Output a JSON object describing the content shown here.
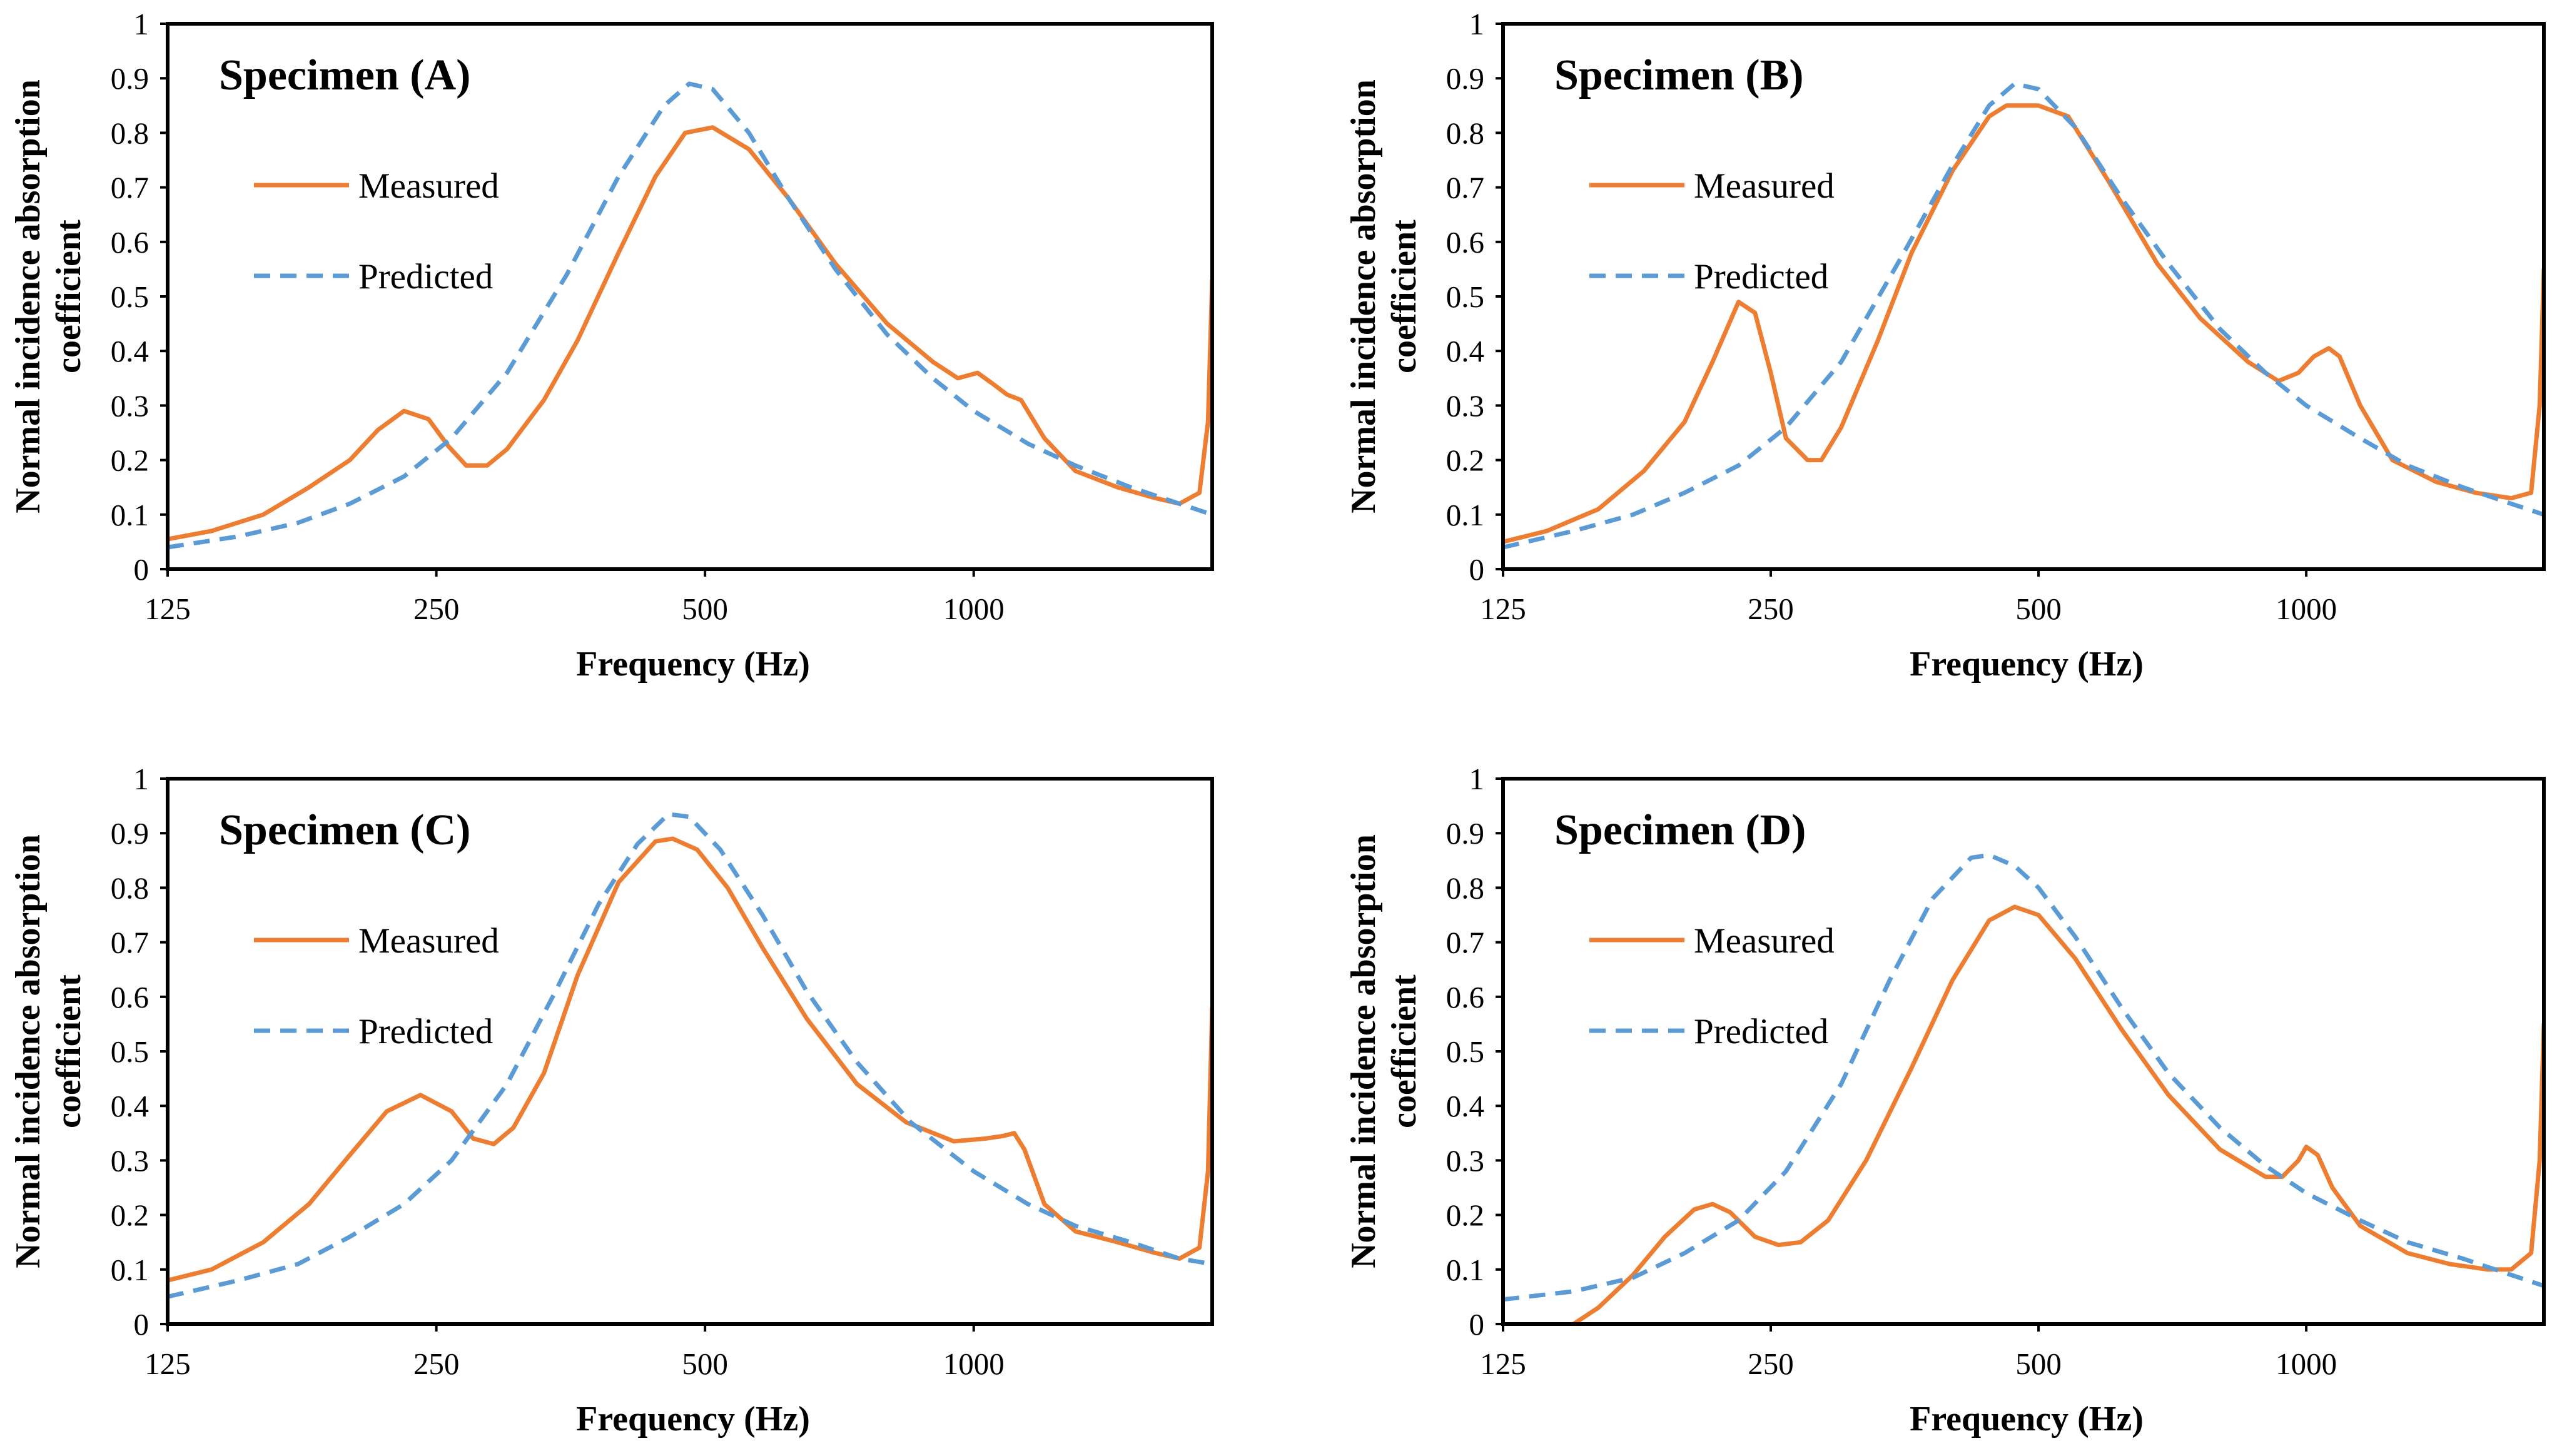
{
  "styles": {
    "measured_color": "#ED7D31",
    "predicted_color": "#5B9BD5"
  },
  "chart_data": [
    {
      "type": "line",
      "title": "Specimen (A)",
      "xlabel": "Frequency (Hz)",
      "ylabel": "Normal incidence absorption coefficient",
      "xscale": "log",
      "xlim": [
        125,
        1850
      ],
      "ylim": [
        0,
        1
      ],
      "x_ticks": [
        125,
        250,
        500,
        1000
      ],
      "x_tick_labels": [
        "125",
        "250",
        "500",
        "1000"
      ],
      "y_ticks": [
        0,
        0.1,
        0.2,
        0.3,
        0.4,
        0.5,
        0.6,
        0.7,
        0.8,
        0.9,
        1
      ],
      "y_tick_labels": [
        "0",
        "0.1",
        "0.2",
        "0.3",
        "0.4",
        "0.5",
        "0.6",
        "0.7",
        "0.8",
        "0.9",
        "1"
      ],
      "grid": false,
      "legend_position": "top-left",
      "series": [
        {
          "name": "Measured",
          "style": "solid",
          "x": [
            125,
            140,
            160,
            180,
            200,
            215,
            230,
            245,
            258,
            270,
            285,
            300,
            330,
            360,
            400,
            440,
            475,
            510,
            560,
            620,
            700,
            800,
            900,
            960,
            1010,
            1050,
            1090,
            1130,
            1200,
            1300,
            1450,
            1600,
            1700,
            1790,
            1830,
            1850
          ],
          "values": [
            0.055,
            0.07,
            0.1,
            0.15,
            0.2,
            0.255,
            0.29,
            0.275,
            0.225,
            0.19,
            0.19,
            0.22,
            0.31,
            0.42,
            0.58,
            0.72,
            0.8,
            0.81,
            0.77,
            0.68,
            0.56,
            0.45,
            0.38,
            0.35,
            0.36,
            0.34,
            0.32,
            0.31,
            0.24,
            0.18,
            0.15,
            0.13,
            0.12,
            0.14,
            0.27,
            0.53
          ]
        },
        {
          "name": "Predicted",
          "style": "dashed",
          "x": [
            125,
            150,
            175,
            200,
            230,
            260,
            300,
            350,
            400,
            450,
            480,
            510,
            560,
            620,
            700,
            800,
            900,
            1000,
            1150,
            1300,
            1500,
            1700,
            1850
          ],
          "values": [
            0.04,
            0.06,
            0.085,
            0.12,
            0.17,
            0.24,
            0.36,
            0.54,
            0.72,
            0.85,
            0.89,
            0.88,
            0.8,
            0.68,
            0.55,
            0.43,
            0.35,
            0.29,
            0.23,
            0.19,
            0.15,
            0.12,
            0.1
          ]
        }
      ]
    },
    {
      "type": "line",
      "title": "Specimen (B)",
      "xlabel": "Frequency (Hz)",
      "ylabel": "Normal incidence absorption coefficient",
      "xscale": "log",
      "xlim": [
        125,
        1850
      ],
      "ylim": [
        0,
        1
      ],
      "x_ticks": [
        125,
        250,
        500,
        1000
      ],
      "x_tick_labels": [
        "125",
        "250",
        "500",
        "1000"
      ],
      "y_ticks": [
        0,
        0.1,
        0.2,
        0.3,
        0.4,
        0.5,
        0.6,
        0.7,
        0.8,
        0.9,
        1
      ],
      "y_tick_labels": [
        "0",
        "0.1",
        "0.2",
        "0.3",
        "0.4",
        "0.5",
        "0.6",
        "0.7",
        "0.8",
        "0.9",
        "1"
      ],
      "grid": false,
      "legend_position": "top-left",
      "series": [
        {
          "name": "Measured",
          "style": "solid",
          "x": [
            125,
            140,
            160,
            180,
            200,
            215,
            230,
            240,
            250,
            260,
            275,
            285,
            300,
            330,
            360,
            400,
            440,
            460,
            500,
            540,
            600,
            680,
            760,
            860,
            930,
            980,
            1020,
            1060,
            1090,
            1150,
            1250,
            1400,
            1550,
            1700,
            1790,
            1830,
            1850
          ],
          "values": [
            0.05,
            0.07,
            0.11,
            0.18,
            0.27,
            0.38,
            0.49,
            0.47,
            0.36,
            0.24,
            0.2,
            0.2,
            0.26,
            0.42,
            0.58,
            0.73,
            0.83,
            0.85,
            0.85,
            0.83,
            0.71,
            0.56,
            0.46,
            0.38,
            0.345,
            0.36,
            0.39,
            0.405,
            0.39,
            0.3,
            0.2,
            0.16,
            0.14,
            0.13,
            0.14,
            0.3,
            0.55
          ]
        },
        {
          "name": "Predicted",
          "style": "dashed",
          "x": [
            125,
            150,
            175,
            200,
            230,
            260,
            300,
            350,
            400,
            440,
            470,
            500,
            550,
            620,
            700,
            800,
            900,
            1000,
            1150,
            1300,
            1500,
            1700,
            1850
          ],
          "values": [
            0.04,
            0.07,
            0.1,
            0.14,
            0.19,
            0.26,
            0.38,
            0.57,
            0.74,
            0.85,
            0.89,
            0.88,
            0.81,
            0.68,
            0.56,
            0.44,
            0.36,
            0.3,
            0.24,
            0.19,
            0.15,
            0.12,
            0.1
          ]
        }
      ]
    },
    {
      "type": "line",
      "title": "Specimen (C)",
      "xlabel": "Frequency (Hz)",
      "ylabel": "Normal incidence absorption coefficient",
      "xscale": "log",
      "xlim": [
        125,
        1850
      ],
      "ylim": [
        0,
        1
      ],
      "x_ticks": [
        125,
        250,
        500,
        1000
      ],
      "x_tick_labels": [
        "125",
        "250",
        "500",
        "1000"
      ],
      "y_ticks": [
        0,
        0.1,
        0.2,
        0.3,
        0.4,
        0.5,
        0.6,
        0.7,
        0.8,
        0.9,
        1
      ],
      "y_tick_labels": [
        "0",
        "0.1",
        "0.2",
        "0.3",
        "0.4",
        "0.5",
        "0.6",
        "0.7",
        "0.8",
        "0.9",
        "1"
      ],
      "grid": false,
      "legend_position": "top-left",
      "series": [
        {
          "name": "Measured",
          "style": "solid",
          "x": [
            125,
            140,
            160,
            180,
            200,
            220,
            240,
            260,
            275,
            290,
            305,
            330,
            360,
            400,
            440,
            460,
            490,
            530,
            580,
            650,
            740,
            840,
            950,
            1030,
            1080,
            1110,
            1140,
            1200,
            1300,
            1450,
            1600,
            1700,
            1790,
            1830,
            1850
          ],
          "values": [
            0.08,
            0.1,
            0.15,
            0.22,
            0.31,
            0.39,
            0.42,
            0.39,
            0.34,
            0.33,
            0.36,
            0.46,
            0.64,
            0.81,
            0.885,
            0.89,
            0.87,
            0.8,
            0.69,
            0.56,
            0.44,
            0.37,
            0.335,
            0.34,
            0.345,
            0.35,
            0.32,
            0.22,
            0.17,
            0.15,
            0.13,
            0.12,
            0.14,
            0.28,
            0.58
          ]
        },
        {
          "name": "Predicted",
          "style": "dashed",
          "x": [
            125,
            150,
            175,
            200,
            230,
            260,
            300,
            340,
            380,
            420,
            455,
            480,
            520,
            580,
            650,
            740,
            850,
            1000,
            1150,
            1300,
            1500,
            1700,
            1850
          ],
          "values": [
            0.05,
            0.08,
            0.11,
            0.16,
            0.22,
            0.3,
            0.44,
            0.61,
            0.77,
            0.88,
            0.935,
            0.93,
            0.87,
            0.75,
            0.61,
            0.48,
            0.37,
            0.28,
            0.22,
            0.18,
            0.15,
            0.12,
            0.11
          ]
        }
      ]
    },
    {
      "type": "line",
      "title": "Specimen (D)",
      "xlabel": "Frequency (Hz)",
      "ylabel": "Normal incidence absorption coefficient",
      "xscale": "log",
      "xlim": [
        125,
        1850
      ],
      "ylim": [
        0,
        1
      ],
      "x_ticks": [
        125,
        250,
        500,
        1000
      ],
      "x_tick_labels": [
        "125",
        "250",
        "500",
        "1000"
      ],
      "y_ticks": [
        0,
        0.1,
        0.2,
        0.3,
        0.4,
        0.5,
        0.6,
        0.7,
        0.8,
        0.9,
        1
      ],
      "y_tick_labels": [
        "0",
        "0.1",
        "0.2",
        "0.3",
        "0.4",
        "0.5",
        "0.6",
        "0.7",
        "0.8",
        "0.9",
        "1"
      ],
      "grid": false,
      "legend_position": "top-left",
      "series": [
        {
          "name": "Measured",
          "style": "solid",
          "x": [
            150,
            160,
            175,
            190,
            205,
            215,
            225,
            240,
            255,
            270,
            290,
            320,
            360,
            400,
            440,
            470,
            500,
            550,
            620,
            700,
            800,
            900,
            940,
            980,
            1000,
            1030,
            1070,
            1150,
            1300,
            1450,
            1600,
            1700,
            1790,
            1830,
            1850
          ],
          "values": [
            0.0,
            0.03,
            0.09,
            0.16,
            0.21,
            0.22,
            0.205,
            0.16,
            0.145,
            0.15,
            0.19,
            0.3,
            0.47,
            0.63,
            0.74,
            0.765,
            0.75,
            0.67,
            0.54,
            0.42,
            0.32,
            0.27,
            0.27,
            0.3,
            0.325,
            0.31,
            0.25,
            0.18,
            0.13,
            0.11,
            0.1,
            0.1,
            0.13,
            0.3,
            0.55
          ]
        },
        {
          "name": "Predicted",
          "style": "dashed",
          "x": [
            125,
            150,
            175,
            200,
            230,
            260,
            300,
            340,
            380,
            420,
            440,
            470,
            500,
            550,
            620,
            700,
            800,
            900,
            1000,
            1150,
            1300,
            1500,
            1700,
            1850
          ],
          "values": [
            0.045,
            0.06,
            0.085,
            0.13,
            0.19,
            0.28,
            0.44,
            0.63,
            0.78,
            0.855,
            0.86,
            0.84,
            0.8,
            0.71,
            0.58,
            0.46,
            0.36,
            0.29,
            0.24,
            0.19,
            0.15,
            0.12,
            0.09,
            0.07
          ]
        }
      ]
    }
  ]
}
